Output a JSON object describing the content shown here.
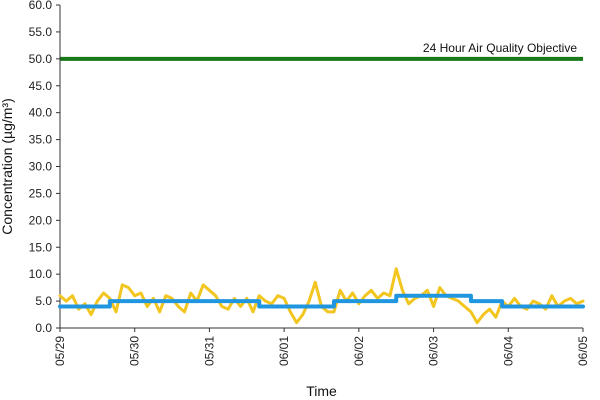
{
  "chart_data": {
    "type": "line",
    "xlabel": "Time",
    "ylabel": "Concentration (µg/m³)",
    "ylim": [
      0,
      60
    ],
    "yticks": [
      "0.0",
      "5.0",
      "10.0",
      "15.0",
      "20.0",
      "25.0",
      "30.0",
      "35.0",
      "40.0",
      "45.0",
      "50.0",
      "55.0",
      "60.0"
    ],
    "xlim": [
      "2024-05-29",
      "2024-06-05"
    ],
    "xticks": [
      "05/29",
      "05/30",
      "05/31",
      "06/01",
      "06/02",
      "06/03",
      "06/04",
      "06/05"
    ],
    "grid": false,
    "annotation": {
      "text": "24 Hour Air Quality Objective",
      "value": 50,
      "color": "#1a7a1a"
    },
    "series": [
      {
        "name": "",
        "color": "#f2c51f",
        "x": [
          "2024-05-29T00:00",
          "2024-05-29T02:00",
          "2024-05-29T04:00",
          "2024-05-29T06:00",
          "2024-05-29T08:00",
          "2024-05-29T10:00",
          "2024-05-29T12:00",
          "2024-05-29T14:00",
          "2024-05-29T16:00",
          "2024-05-29T18:00",
          "2024-05-29T20:00",
          "2024-05-29T22:00",
          "2024-05-30T00:00",
          "2024-05-30T02:00",
          "2024-05-30T04:00",
          "2024-05-30T06:00",
          "2024-05-30T08:00",
          "2024-05-30T10:00",
          "2024-05-30T12:00",
          "2024-05-30T14:00",
          "2024-05-30T16:00",
          "2024-05-30T18:00",
          "2024-05-30T20:00",
          "2024-05-30T22:00",
          "2024-05-31T00:00",
          "2024-05-31T02:00",
          "2024-05-31T04:00",
          "2024-05-31T06:00",
          "2024-05-31T08:00",
          "2024-05-31T10:00",
          "2024-05-31T12:00",
          "2024-05-31T14:00",
          "2024-05-31T16:00",
          "2024-05-31T18:00",
          "2024-05-31T20:00",
          "2024-05-31T22:00",
          "2024-06-01T00:00",
          "2024-06-01T02:00",
          "2024-06-01T04:00",
          "2024-06-01T06:00",
          "2024-06-01T08:00",
          "2024-06-01T10:00",
          "2024-06-01T12:00",
          "2024-06-01T14:00",
          "2024-06-01T16:00",
          "2024-06-01T18:00",
          "2024-06-01T20:00",
          "2024-06-01T22:00",
          "2024-06-02T00:00",
          "2024-06-02T02:00",
          "2024-06-02T04:00",
          "2024-06-02T06:00",
          "2024-06-02T08:00",
          "2024-06-02T10:00",
          "2024-06-02T12:00",
          "2024-06-02T14:00",
          "2024-06-02T16:00",
          "2024-06-02T18:00",
          "2024-06-02T20:00",
          "2024-06-02T22:00",
          "2024-06-03T00:00",
          "2024-06-03T02:00",
          "2024-06-03T04:00",
          "2024-06-03T06:00",
          "2024-06-03T08:00",
          "2024-06-03T10:00",
          "2024-06-03T12:00",
          "2024-06-03T14:00",
          "2024-06-03T16:00",
          "2024-06-03T18:00",
          "2024-06-03T20:00",
          "2024-06-03T22:00",
          "2024-06-04T00:00",
          "2024-06-04T02:00",
          "2024-06-04T04:00",
          "2024-06-04T06:00",
          "2024-06-04T08:00",
          "2024-06-04T10:00",
          "2024-06-04T12:00",
          "2024-06-04T14:00",
          "2024-06-04T16:00",
          "2024-06-04T18:00",
          "2024-06-04T20:00",
          "2024-06-04T22:00",
          "2024-06-05T00:00"
        ],
        "values": [
          6.0,
          5.0,
          6.0,
          3.5,
          4.5,
          2.5,
          5.0,
          6.5,
          5.5,
          3.0,
          8.0,
          7.5,
          6.0,
          6.5,
          4.0,
          5.5,
          3.0,
          6.0,
          5.5,
          4.0,
          3.0,
          6.5,
          5.0,
          8.0,
          7.0,
          6.0,
          4.0,
          3.5,
          5.5,
          4.0,
          5.5,
          3.0,
          6.0,
          5.0,
          4.5,
          6.0,
          5.5,
          3.0,
          1.0,
          2.5,
          5.0,
          8.5,
          4.0,
          3.0,
          3.0,
          7.0,
          5.0,
          6.5,
          4.5,
          6.0,
          7.0,
          5.5,
          6.5,
          6.0,
          11.0,
          7.0,
          4.5,
          5.5,
          6.0,
          7.0,
          4.0,
          7.5,
          6.0,
          5.5,
          5.0,
          4.0,
          3.0,
          1.0,
          2.5,
          3.5,
          2.0,
          5.0,
          4.0,
          5.5,
          4.0,
          3.5,
          5.0,
          4.5,
          3.5,
          6.0,
          4.0,
          5.0,
          5.5,
          4.5,
          5.0
        ]
      },
      {
        "name": "",
        "color": "#2196e0",
        "x": [
          "2024-05-29T00:00",
          "2024-05-29T16:00",
          "2024-05-29T16:01",
          "2024-05-30T16:00",
          "2024-05-30T16:01",
          "2024-05-31T16:00",
          "2024-05-31T16:01",
          "2024-06-01T16:00",
          "2024-06-01T16:01",
          "2024-06-02T12:00",
          "2024-06-02T12:01",
          "2024-06-03T12:00",
          "2024-06-03T12:01",
          "2024-06-03T22:00",
          "2024-06-03T22:01",
          "2024-06-05T00:00"
        ],
        "values": [
          4.0,
          4.0,
          5.0,
          5.0,
          5.0,
          5.0,
          4.0,
          4.0,
          5.0,
          5.0,
          6.0,
          6.0,
          5.0,
          5.0,
          4.0,
          4.0
        ]
      }
    ]
  }
}
